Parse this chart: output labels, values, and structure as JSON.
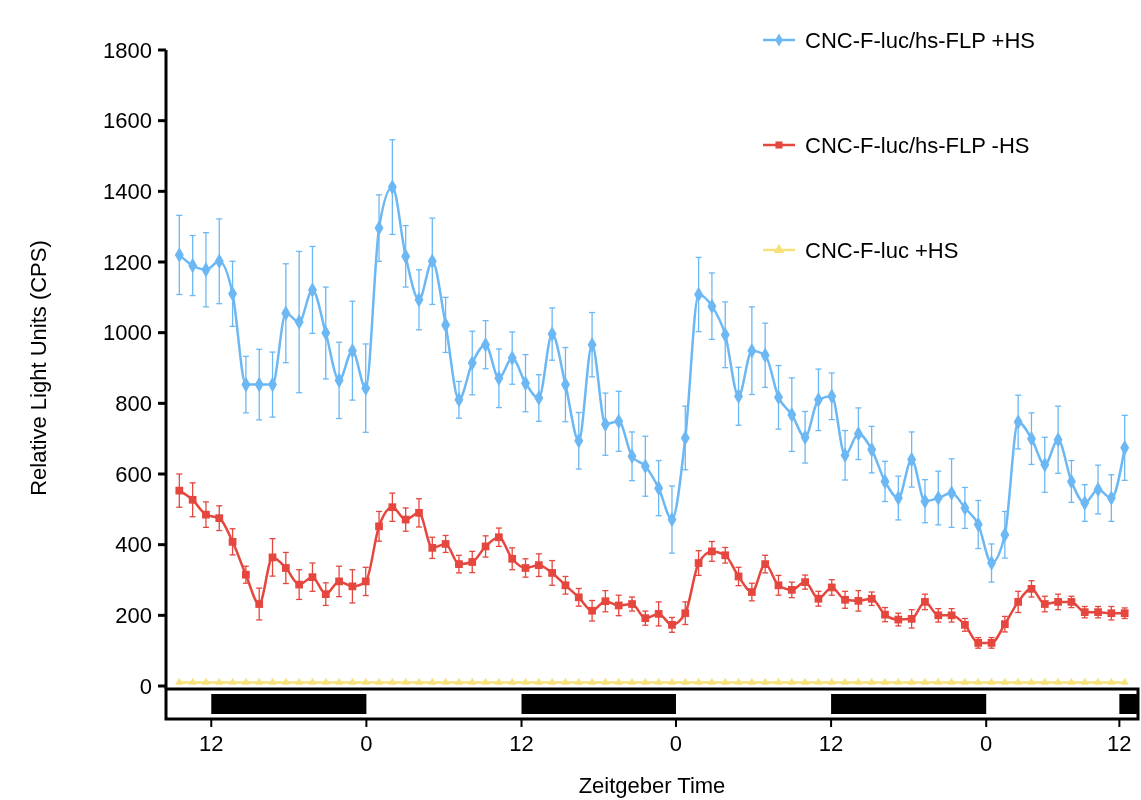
{
  "chart_data": {
    "type": "line",
    "xlabel": "Zeitgeber Time",
    "ylabel": "Relative Light Units (CPS)",
    "legend": "top right",
    "grid": false,
    "categories": [
      null,
      null,
      null,
      null,
      null,
      null,
      null,
      null,
      null,
      null,
      null,
      null,
      null,
      null,
      null,
      null,
      null,
      null,
      null,
      null,
      null,
      null,
      null,
      null,
      null,
      null,
      null,
      null,
      null,
      null,
      null,
      null,
      null,
      null,
      null,
      null,
      null,
      null,
      null,
      null,
      null,
      null,
      null,
      null,
      null,
      null,
      null,
      null,
      null,
      null,
      null,
      null,
      null,
      null,
      null,
      null,
      null,
      null,
      null,
      null,
      null,
      null,
      null,
      null,
      null,
      null,
      null,
      null,
      null,
      null,
      null,
      null
    ],
    "annotations": [
      "12",
      "0",
      "12",
      "0",
      "12",
      "0",
      "12"
    ],
    "ylim": [
      0,
      1800
    ],
    "yticks": [
      0,
      200,
      400,
      600,
      800,
      1000,
      1200,
      1400,
      1600,
      1800
    ],
    "series": [
      {
        "name": "CNC-F-luc/hs-FLP +HS",
        "color": "#6cb8f4",
        "marker": "diamond",
        "values": [
          1220,
          1190,
          1178,
          1202,
          1110,
          853,
          853,
          853,
          1055,
          1030,
          1121,
          999,
          865,
          949,
          843,
          1296,
          1412,
          1216,
          1093,
          1202,
          1022,
          810,
          914,
          966,
          871,
          928,
          857,
          815,
          996,
          853,
          694,
          966,
          741,
          749,
          650,
          622,
          560,
          471,
          702,
          1108,
          1075,
          994,
          820,
          949,
          936,
          817,
          768,
          704,
          810,
          820,
          653,
          714,
          669,
          579,
          532,
          641,
          523,
          532,
          546,
          504,
          457,
          348,
          428,
          747,
          700,
          626,
          697,
          579,
          518,
          556,
          532,
          674
        ],
        "errors": [
          112,
          85,
          105,
          120,
          92,
          80,
          100,
          92,
          140,
          200,
          123,
          130,
          108,
          140,
          125,
          94,
          134,
          87,
          85,
          122,
          78,
          52,
          90,
          68,
          83,
          74,
          81,
          66,
          74,
          105,
          80,
          91,
          88,
          85,
          69,
          85,
          78,
          95,
          90,
          105,
          94,
          93,
          82,
          124,
          91,
          90,
          104,
          73,
          87,
          66,
          70,
          73,
          66,
          57,
          62,
          78,
          61,
          76,
          97,
          58,
          68,
          54,
          66,
          76,
          73,
          78,
          95,
          59,
          52,
          69,
          66,
          92
        ]
      },
      {
        "name": "CNC-F-luc/hs-FLP -HS",
        "color": "#e5463d",
        "marker": "square",
        "values": [
          553,
          527,
          485,
          475,
          408,
          315,
          232,
          364,
          334,
          287,
          308,
          260,
          296,
          282,
          296,
          452,
          506,
          471,
          490,
          391,
          402,
          345,
          351,
          395,
          421,
          360,
          334,
          342,
          320,
          285,
          251,
          213,
          240,
          228,
          232,
          192,
          204,
          173,
          206,
          348,
          381,
          370,
          310,
          266,
          345,
          285,
          272,
          294,
          247,
          279,
          244,
          241,
          247,
          202,
          188,
          190,
          238,
          200,
          200,
          173,
          122,
          122,
          175,
          238,
          275,
          232,
          238,
          238,
          209,
          209,
          206,
          206
        ],
        "errors": [
          47,
          48,
          36,
          35,
          37,
          24,
          45,
          53,
          44,
          42,
          40,
          32,
          43,
          47,
          40,
          42,
          40,
          33,
          40,
          30,
          24,
          25,
          30,
          30,
          26,
          31,
          26,
          32,
          35,
          25,
          25,
          29,
          30,
          29,
          20,
          20,
          34,
          21,
          32,
          35,
          28,
          22,
          26,
          25,
          25,
          28,
          22,
          20,
          21,
          22,
          24,
          29,
          19,
          20,
          18,
          26,
          22,
          19,
          19,
          18,
          15,
          15,
          22,
          30,
          23,
          22,
          22,
          16,
          16,
          16,
          19,
          15
        ]
      },
      {
        "name": "CNC-F-luc +HS",
        "color": "#f7e27a",
        "marker": "triangle",
        "values": [
          10,
          10,
          10,
          10,
          10,
          10,
          10,
          10,
          10,
          10,
          10,
          10,
          10,
          10,
          10,
          10,
          10,
          10,
          10,
          10,
          10,
          10,
          10,
          10,
          10,
          10,
          10,
          10,
          10,
          10,
          10,
          10,
          10,
          10,
          10,
          10,
          10,
          10,
          10,
          10,
          10,
          10,
          10,
          10,
          10,
          10,
          10,
          10,
          10,
          10,
          10,
          10,
          10,
          10,
          10,
          10,
          10,
          10,
          10,
          10,
          10,
          10,
          10,
          10,
          10,
          10,
          10,
          10,
          10,
          10,
          10,
          10
        ]
      }
    ]
  }
}
